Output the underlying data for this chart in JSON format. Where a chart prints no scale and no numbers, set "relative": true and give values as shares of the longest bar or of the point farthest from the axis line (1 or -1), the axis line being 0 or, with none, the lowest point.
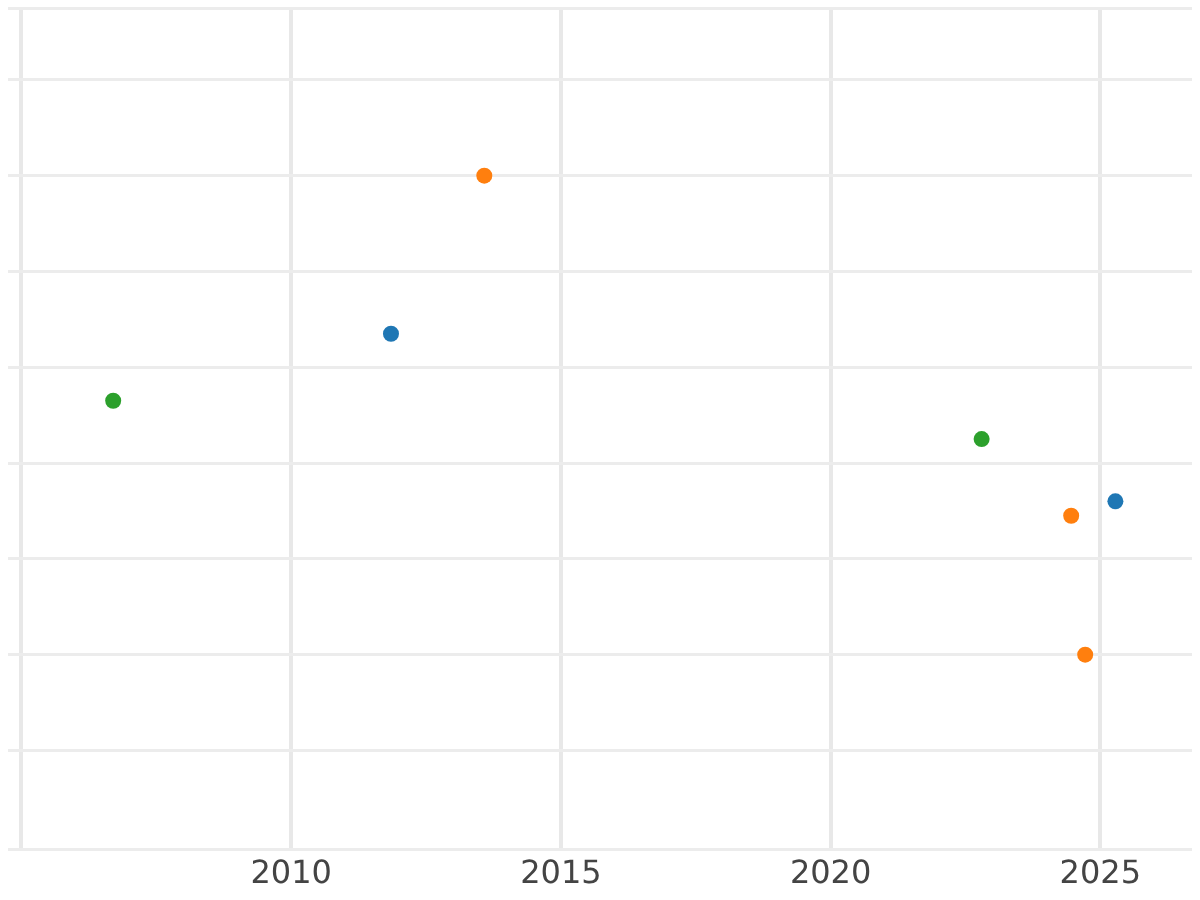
{
  "chart_data": {
    "type": "scatter",
    "relative": true,
    "xlim": [
      2004.75,
      2026.7
    ],
    "xticks": [
      {
        "value": 2005,
        "label": null
      },
      2010,
      2015,
      2020,
      2025
    ],
    "grid": true,
    "legend": false,
    "marker": "circle",
    "tick_labels": "x",
    "series": [
      {
        "color": "#1f77b4",
        "x": [
          2011.85,
          2025.28
        ],
        "values": [
          0.67,
          0.32
        ]
      },
      {
        "color": "#ff7f0e",
        "x": [
          2013.58,
          2024.46,
          2024.72
        ],
        "values": [
          1,
          0.29,
          0
        ]
      },
      {
        "color": "#2ca02c",
        "x": [
          2006.7,
          2022.8
        ],
        "values": [
          0.53,
          0.45
        ]
      }
    ]
  }
}
